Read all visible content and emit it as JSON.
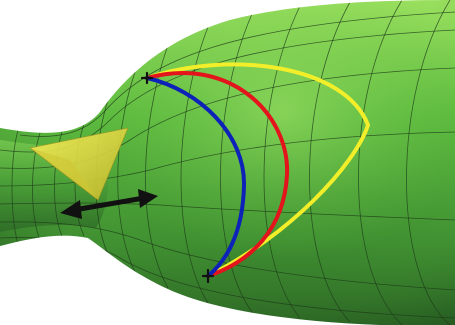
{
  "figure": {
    "description_text": "",
    "colors": {
      "background": "#ffffff",
      "surface_light": "#7fd14f",
      "surface_mid": "#4fa63a",
      "surface_dark": "#2f6e27",
      "mesh_line": "#1e3b1a",
      "cone_fill": "#e8e234",
      "cone_shadow": "#b7b12a",
      "curve_blue": "#0c22b8",
      "curve_red": "#e3141b",
      "curve_yellow": "#f3ee2a",
      "arrow": "#111111",
      "endpoint_marker": "#111111"
    },
    "curves": [
      {
        "name": "blue-geodesic-curve",
        "color_key": "curve_blue"
      },
      {
        "name": "red-curve",
        "color_key": "curve_red"
      },
      {
        "name": "yellow-curve",
        "color_key": "curve_yellow"
      }
    ],
    "markers": [
      "top-endpoint-marker",
      "bottom-endpoint-marker"
    ],
    "arrow": {
      "name": "double-headed-arrow",
      "direction": "horizontal"
    }
  }
}
